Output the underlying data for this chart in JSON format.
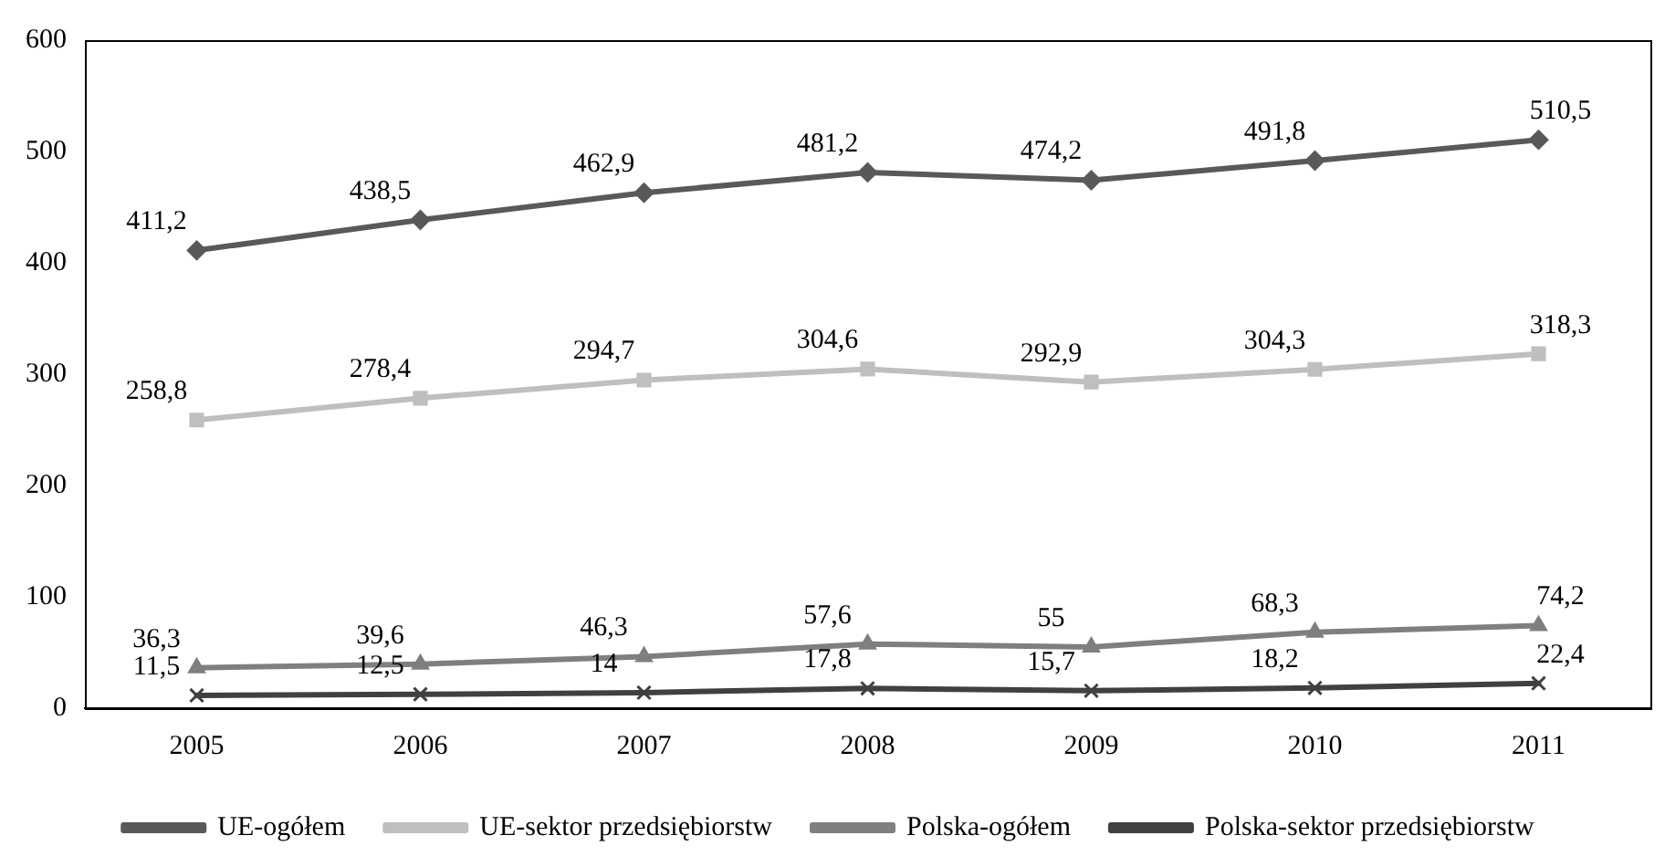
{
  "chart_data": {
    "type": "line",
    "categories": [
      "2005",
      "2006",
      "2007",
      "2008",
      "2009",
      "2010",
      "2011"
    ],
    "ylim": [
      0,
      600
    ],
    "yticks": [
      0,
      100,
      200,
      300,
      400,
      500,
      600
    ],
    "grid": false,
    "legend": "bottom",
    "series": [
      {
        "name": "UE-ogółem",
        "color": "#595959",
        "marker": "diamond",
        "values": [
          411.2,
          438.5,
          462.9,
          481.2,
          474.2,
          491.8,
          510.5
        ],
        "value_labels": [
          "411,2",
          "438,5",
          "462,9",
          "481,2",
          "474,2",
          "491,8",
          "510,5"
        ]
      },
      {
        "name": "UE-sektor przedsiębiorstw",
        "color": "#bfbfbf",
        "marker": "square",
        "values": [
          258.8,
          278.4,
          294.7,
          304.6,
          292.9,
          304.3,
          318.3
        ],
        "value_labels": [
          "258,8",
          "278,4",
          "294,7",
          "304,6",
          "292,9",
          "304,3",
          "318,3"
        ]
      },
      {
        "name": "Polska-ogółem",
        "color": "#7f7f7f",
        "marker": "triangle",
        "values": [
          36.3,
          39.6,
          46.3,
          57.6,
          55,
          68.3,
          74.2
        ],
        "value_labels": [
          "36,3",
          "39,6",
          "46,3",
          "57,6",
          "55",
          "68,3",
          "74,2"
        ]
      },
      {
        "name": "Polska-sektor przedsiębiorstw",
        "color": "#404040",
        "marker": "cross",
        "values": [
          11.5,
          12.5,
          14,
          17.8,
          15.7,
          18.2,
          22.4
        ],
        "value_labels": [
          "11,5",
          "12,5",
          "14",
          "17,8",
          "15,7",
          "18,2",
          "22,4"
        ]
      }
    ]
  }
}
